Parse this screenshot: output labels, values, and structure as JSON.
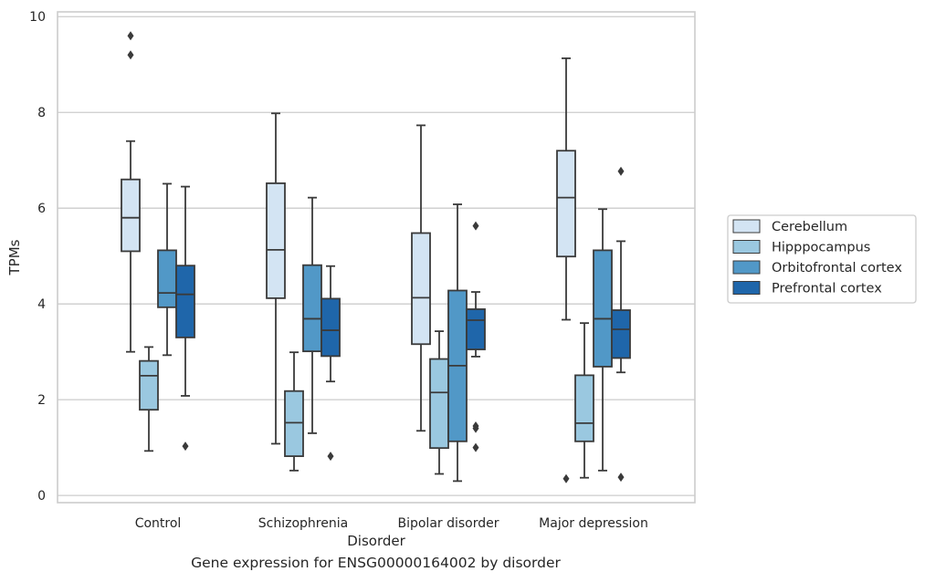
{
  "caption": "Gene expression for ENSG00000164002 by disorder",
  "chart_data": {
    "type": "box",
    "xlabel": "Disorder",
    "ylabel": "TPMs",
    "ylim": [
      -0.15,
      10.1
    ],
    "yticks": [
      0,
      2,
      4,
      6,
      8,
      10
    ],
    "grid": true,
    "legend_position": "right",
    "categories": [
      "Control",
      "Schizophrenia",
      "Bipolar disorder",
      "Major depression"
    ],
    "series": [
      {
        "name": "Cerebellum",
        "color": "#d3e4f3",
        "boxes": [
          {
            "whislo": 3.0,
            "q1": 5.1,
            "med": 5.8,
            "q3": 6.6,
            "whishi": 7.4,
            "fliers": [
              9.6,
              9.2
            ]
          },
          {
            "whislo": 1.08,
            "q1": 4.12,
            "med": 5.13,
            "q3": 6.52,
            "whishi": 7.98,
            "fliers": []
          },
          {
            "whislo": 1.35,
            "q1": 3.16,
            "med": 4.13,
            "q3": 5.48,
            "whishi": 7.73,
            "fliers": []
          },
          {
            "whislo": 3.67,
            "q1": 4.99,
            "med": 6.22,
            "q3": 7.2,
            "whishi": 9.13,
            "fliers": [
              0.35
            ]
          }
        ]
      },
      {
        "name": "Hipppocampus",
        "color": "#9ac8e0",
        "boxes": [
          {
            "whislo": 0.93,
            "q1": 1.79,
            "med": 2.5,
            "q3": 2.81,
            "whishi": 3.1,
            "fliers": []
          },
          {
            "whislo": 0.52,
            "q1": 0.82,
            "med": 1.52,
            "q3": 2.18,
            "whishi": 2.99,
            "fliers": []
          },
          {
            "whislo": 0.45,
            "q1": 0.99,
            "med": 2.15,
            "q3": 2.85,
            "whishi": 3.43,
            "fliers": []
          },
          {
            "whislo": 0.37,
            "q1": 1.13,
            "med": 1.51,
            "q3": 2.51,
            "whishi": 3.6,
            "fliers": []
          }
        ]
      },
      {
        "name": "Orbitofrontal cortex",
        "color": "#5198c7",
        "boxes": [
          {
            "whislo": 2.93,
            "q1": 3.93,
            "med": 4.23,
            "q3": 5.12,
            "whishi": 6.51,
            "fliers": []
          },
          {
            "whislo": 1.3,
            "q1": 3.01,
            "med": 3.69,
            "q3": 4.81,
            "whishi": 6.22,
            "fliers": []
          },
          {
            "whislo": 0.3,
            "q1": 1.13,
            "med": 2.71,
            "q3": 4.28,
            "whishi": 6.08,
            "fliers": []
          },
          {
            "whislo": 0.52,
            "q1": 2.69,
            "med": 3.69,
            "q3": 5.12,
            "whishi": 5.98,
            "fliers": []
          }
        ]
      },
      {
        "name": "Prefrontal cortex",
        "color": "#1f66aa",
        "boxes": [
          {
            "whislo": 2.08,
            "q1": 3.3,
            "med": 4.2,
            "q3": 4.8,
            "whishi": 6.45,
            "fliers": [
              1.03
            ]
          },
          {
            "whislo": 2.38,
            "q1": 2.91,
            "med": 3.45,
            "q3": 4.11,
            "whishi": 4.79,
            "fliers": [
              0.82
            ]
          },
          {
            "whislo": 2.9,
            "q1": 3.05,
            "med": 3.66,
            "q3": 3.89,
            "whishi": 4.25,
            "fliers": [
              5.63,
              1.45,
              1.4,
              1.0
            ]
          },
          {
            "whislo": 2.57,
            "q1": 2.87,
            "med": 3.47,
            "q3": 3.87,
            "whishi": 5.31,
            "fliers": [
              6.77,
              0.38
            ]
          }
        ]
      }
    ]
  }
}
